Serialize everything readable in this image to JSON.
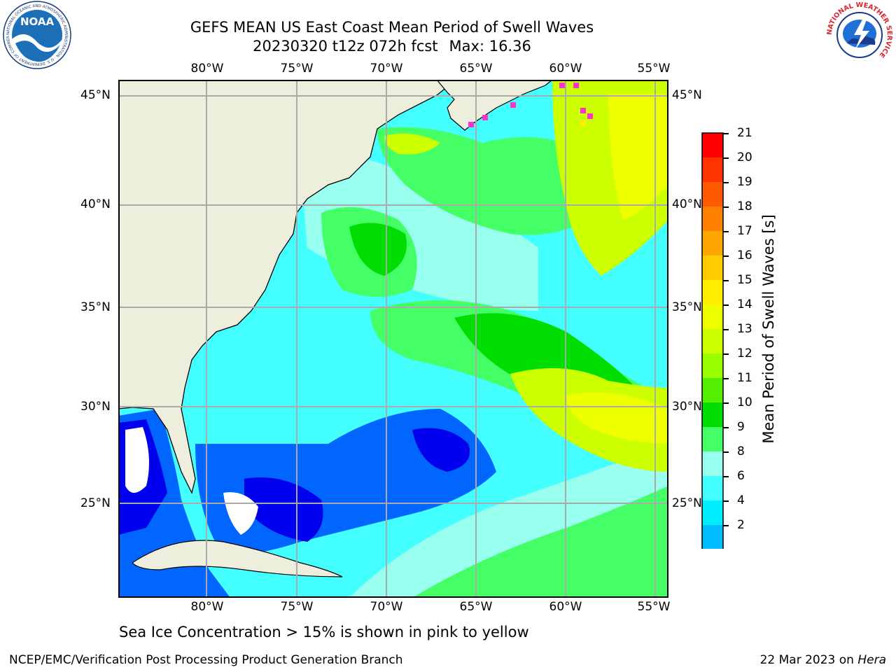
{
  "title": {
    "line1": "GEFS MEAN US East Coast Mean Period of Swell Waves",
    "line2_run": "20230320 t12z 072h fcst",
    "line2_max": "Max: 16.36"
  },
  "logos": {
    "noaa": {
      "text": "NOAA",
      "ring_text": "NATIONAL OCEANIC AND ATMOSPHERIC ADMINISTRATION · U.S. DEPARTMENT OF COMMERCE",
      "color": "#1d6fb8"
    },
    "nws": {
      "ring_text": "NATIONAL WEATHER SERVICE",
      "color": "#d9232d"
    }
  },
  "map": {
    "lon_labels": [
      "80°W",
      "75°W",
      "70°W",
      "65°W",
      "60°W",
      "55°W"
    ],
    "lat_labels": [
      "45°N",
      "40°N",
      "35°N",
      "30°N",
      "25°N"
    ],
    "land_color": "#eeeedd",
    "grid_color": "#aaaaaa"
  },
  "colorbar": {
    "label": "Mean Period of Swell Waves [s]",
    "ticks": [
      "21",
      "20",
      "19",
      "18",
      "17",
      "16",
      "15",
      "14",
      "13",
      "12",
      "11",
      "10",
      "9",
      "8",
      "6",
      "4",
      "2"
    ],
    "colors": [
      "#ff0000",
      "#ff3300",
      "#ff5a00",
      "#ff7f00",
      "#ffa500",
      "#ffcc00",
      "#ffee00",
      "#eeff00",
      "#ccff00",
      "#99ff00",
      "#55ee00",
      "#00dd00",
      "#44ff66",
      "#99ffee",
      "#44ffff",
      "#00eeff",
      "#00bbff",
      "#0066ff"
    ],
    "under_color": "#0000ee"
  },
  "note": "Sea Ice Concentration > 15% is shown in pink to yellow",
  "footer": {
    "left": "NCEP/EMC/Verification Post Processing Product Generation Branch",
    "date": "22 Mar 2023 on",
    "machine": "Hera"
  }
}
